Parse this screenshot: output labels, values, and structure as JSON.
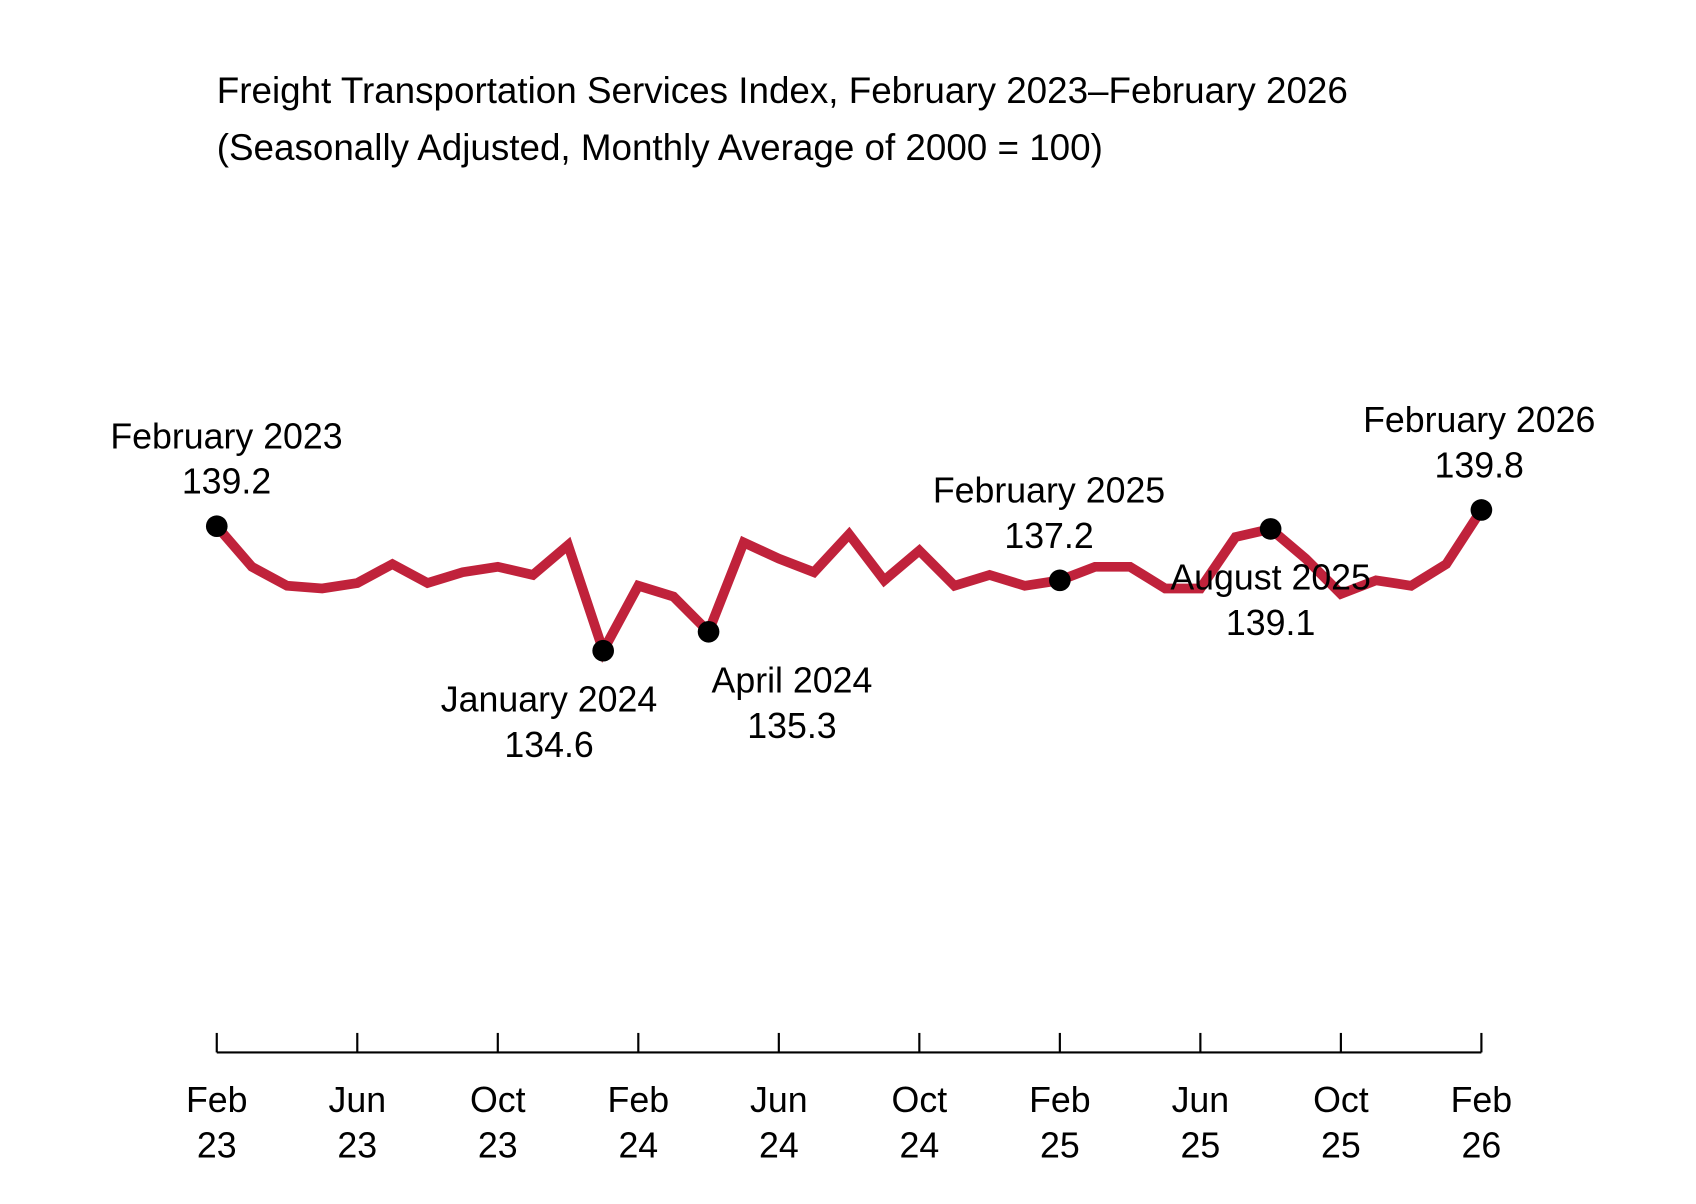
{
  "chart_data": {
    "type": "line",
    "title": "Freight Transportation Services Index, February 2023–February 2026",
    "subtitle": "(Seasonally Adjusted, Monthly Average of 2000 = 100)",
    "xlabel": "",
    "ylabel": "",
    "grid": false,
    "line_color": "#C0223B",
    "marker_color": "#000000",
    "x": [
      "2023-02",
      "2023-03",
      "2023-04",
      "2023-05",
      "2023-06",
      "2023-07",
      "2023-08",
      "2023-09",
      "2023-10",
      "2023-11",
      "2023-12",
      "2024-01",
      "2024-02",
      "2024-03",
      "2024-04",
      "2024-05",
      "2024-06",
      "2024-07",
      "2024-08",
      "2024-09",
      "2024-10",
      "2024-11",
      "2024-12",
      "2025-01",
      "2025-02",
      "2025-03",
      "2025-04",
      "2025-05",
      "2025-06",
      "2025-07",
      "2025-08",
      "2025-09",
      "2025-10",
      "2025-11",
      "2025-12",
      "2026-01",
      "2026-02"
    ],
    "values": [
      139.2,
      137.7,
      137.0,
      136.9,
      137.1,
      137.8,
      137.1,
      137.5,
      137.7,
      137.4,
      138.5,
      134.6,
      137.0,
      136.6,
      135.3,
      138.6,
      138.0,
      137.5,
      138.9,
      137.2,
      138.3,
      137.0,
      137.4,
      137.0,
      137.2,
      137.7,
      137.7,
      136.9,
      136.9,
      138.8,
      139.1,
      138.0,
      136.7,
      137.2,
      137.0,
      137.8,
      139.8
    ],
    "annotations": [
      {
        "index": 0,
        "label": "February 2023",
        "value": "139.2",
        "position": "above"
      },
      {
        "index": 11,
        "label": "January 2024",
        "value": "134.6",
        "position": "below"
      },
      {
        "index": 14,
        "label": "April 2024",
        "value": "135.3",
        "position": "below"
      },
      {
        "index": 24,
        "label": "February 2025",
        "value": "137.2",
        "position": "above"
      },
      {
        "index": 30,
        "label": "August 2025",
        "value": "139.1",
        "position": "below"
      },
      {
        "index": 36,
        "label": "February 2026",
        "value": "139.8",
        "position": "above"
      }
    ],
    "x_ticks": [
      {
        "index": 0,
        "month": "Feb",
        "year": "23"
      },
      {
        "index": 4,
        "month": "Jun",
        "year": "23"
      },
      {
        "index": 8,
        "month": "Oct",
        "year": "23"
      },
      {
        "index": 12,
        "month": "Feb",
        "year": "24"
      },
      {
        "index": 16,
        "month": "Jun",
        "year": "24"
      },
      {
        "index": 20,
        "month": "Oct",
        "year": "24"
      },
      {
        "index": 24,
        "month": "Feb",
        "year": "25"
      },
      {
        "index": 28,
        "month": "Jun",
        "year": "25"
      },
      {
        "index": 32,
        "month": "Oct",
        "year": "25"
      },
      {
        "index": 36,
        "month": "Feb",
        "year": "26"
      }
    ]
  }
}
